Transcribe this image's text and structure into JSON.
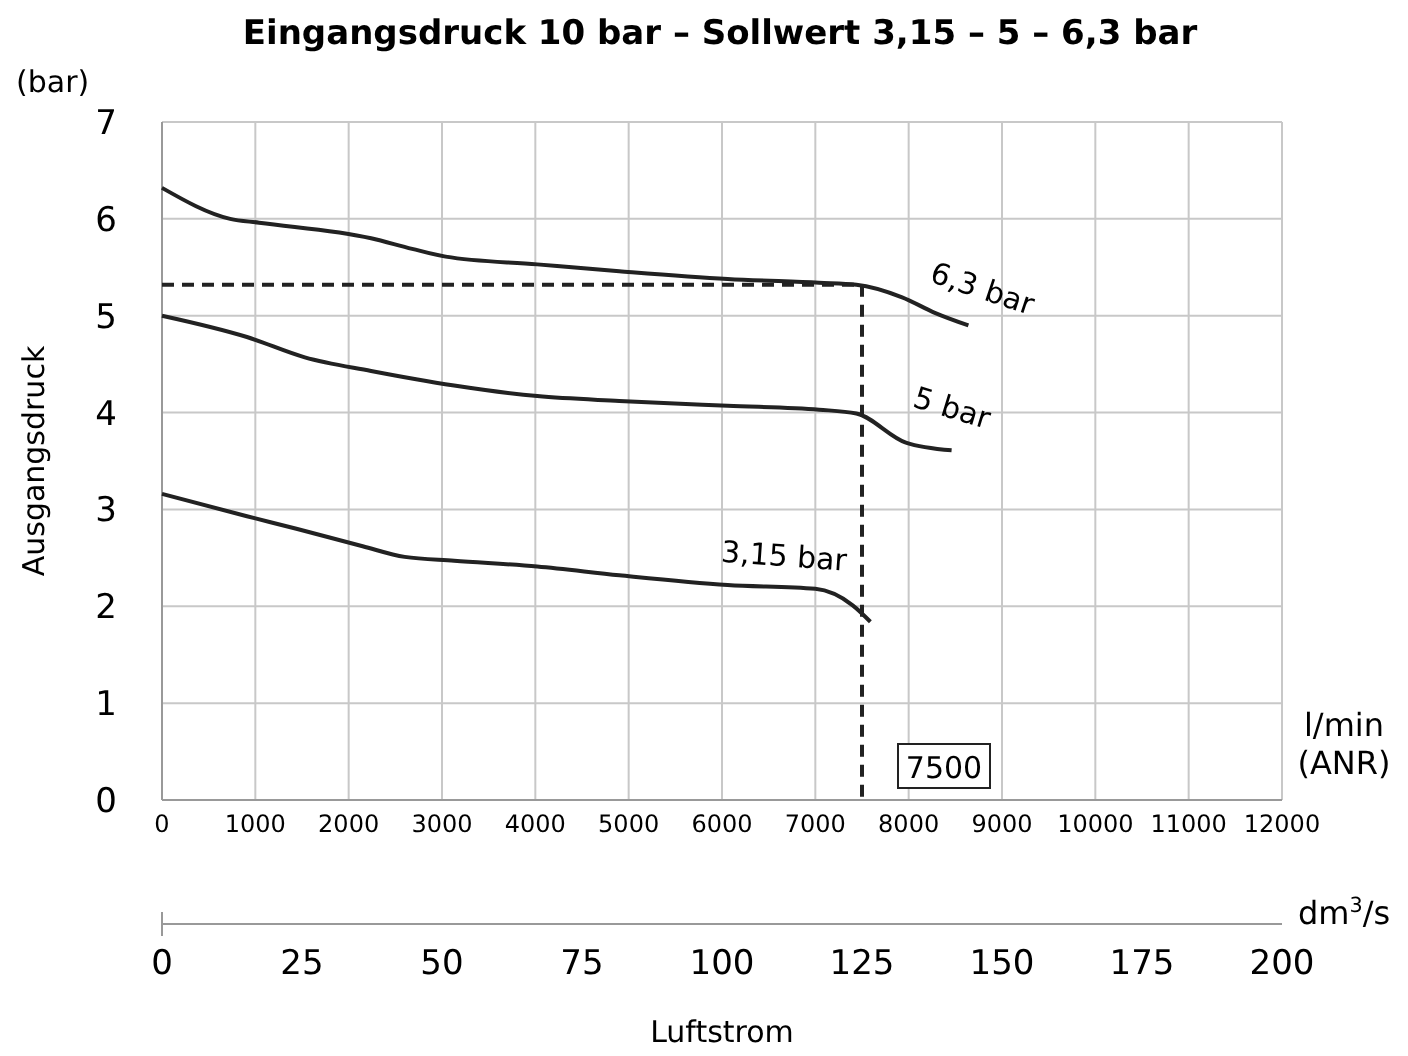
{
  "chart_data": {
    "type": "line",
    "title": "Eingangsdruck 10 bar – Sollwert 3,15 – 5 – 6,3 bar",
    "ylabel": "Ausgangsdruck",
    "xlabel": "l/min (ANR)",
    "x2label": "dm$^{3}$/s",
    "annotations": [
      "(bar)",
      "Luftstrom"
    ],
    "xlim": [
      0,
      12000
    ],
    "xticks": [
      0,
      1000,
      2000,
      3000,
      4000,
      5000,
      6000,
      7000,
      8000,
      9000,
      10000,
      11000,
      12000
    ],
    "x2lim": [
      0,
      200
    ],
    "x2ticks": [
      0,
      25,
      50,
      75,
      100,
      125,
      150,
      175,
      200
    ],
    "ylim": [
      0,
      7
    ],
    "yticks": [
      0,
      1,
      2,
      3,
      4,
      5,
      6,
      7
    ],
    "grid": true,
    "line_style": "solid",
    "marker": "none",
    "ref_lines": [
      {
        "axis": "y",
        "value": 5.32,
        "line_style": "dashed",
        "color": "#222222"
      },
      {
        "axis": "x",
        "value": 7500,
        "label": "7500",
        "line_style": "dashed",
        "color": "#222222"
      }
    ],
    "series": [
      {
        "name": "6,3 bar",
        "color": "#222222",
        "x": [
          0,
          730,
          1040,
          2240,
          2680,
          3040,
          4020,
          4900,
          6060,
          7040,
          7440,
          7930,
          8280,
          8640
        ],
        "values": [
          6.32,
          6.0,
          5.96,
          5.8,
          5.69,
          5.61,
          5.53,
          5.46,
          5.38,
          5.34,
          5.32,
          5.19,
          5.03,
          4.9
        ]
      },
      {
        "name": "5 bar",
        "color": "#222222",
        "x": [
          0,
          910,
          1530,
          2240,
          3130,
          4020,
          4900,
          6060,
          7040,
          7440,
          7970,
          8460
        ],
        "values": [
          5.0,
          4.78,
          4.57,
          4.43,
          4.28,
          4.17,
          4.12,
          4.07,
          4.03,
          3.99,
          3.69,
          3.61
        ]
      },
      {
        "name": "3,15 bar",
        "color": "#222222",
        "x": [
          0,
          910,
          1440,
          2150,
          2600,
          3130,
          4020,
          4900,
          6060,
          7000,
          7400,
          7590
        ],
        "values": [
          3.16,
          2.93,
          2.8,
          2.62,
          2.51,
          2.47,
          2.41,
          2.32,
          2.22,
          2.18,
          2.01,
          1.84
        ]
      }
    ]
  }
}
